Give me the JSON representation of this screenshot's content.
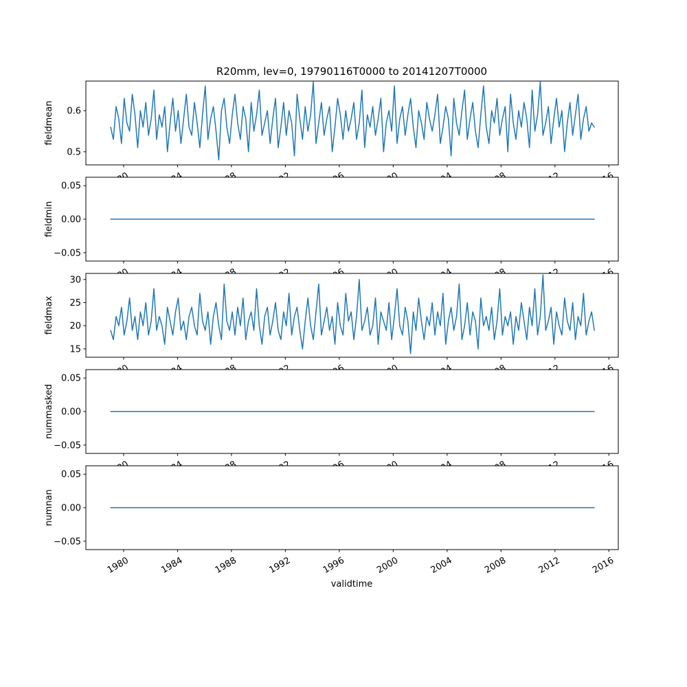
{
  "title": "R20mm, lev=0, 19790116T0000 to 20141207T0000",
  "xlabel": "validtime",
  "line_color": "#1f77b4",
  "chart_data": {
    "type": "line",
    "title": "R20mm, lev=0, 19790116T0000 to 20141207T0000",
    "xlabel": "validtime",
    "x_start": 1979.04,
    "x_end": 2014.92,
    "xlim": [
      1977.2,
      2016.7
    ],
    "xticks": [
      1980,
      1984,
      1988,
      1992,
      1996,
      2000,
      2004,
      2008,
      2012,
      2016
    ],
    "xtick_rotation": 30,
    "grid": false,
    "legend": "none",
    "subplots": [
      {
        "ylabel": "fieldmean",
        "ylim": [
          0.468,
          0.672
        ],
        "yticks": [
          0.5,
          0.6
        ],
        "ytick_labels": [
          "0.5",
          "0.6"
        ],
        "values": [
          0.56,
          0.53,
          0.61,
          0.58,
          0.52,
          0.63,
          0.57,
          0.55,
          0.64,
          0.59,
          0.51,
          0.6,
          0.56,
          0.62,
          0.54,
          0.58,
          0.65,
          0.53,
          0.59,
          0.56,
          0.61,
          0.5,
          0.57,
          0.63,
          0.55,
          0.6,
          0.52,
          0.58,
          0.64,
          0.56,
          0.54,
          0.62,
          0.57,
          0.51,
          0.59,
          0.66,
          0.53,
          0.58,
          0.61,
          0.55,
          0.48,
          0.6,
          0.63,
          0.56,
          0.52,
          0.59,
          0.64,
          0.57,
          0.53,
          0.61,
          0.58,
          0.5,
          0.62,
          0.55,
          0.59,
          0.65,
          0.54,
          0.57,
          0.6,
          0.52,
          0.58,
          0.63,
          0.51,
          0.56,
          0.62,
          0.54,
          0.6,
          0.57,
          0.49,
          0.64,
          0.58,
          0.53,
          0.61,
          0.55,
          0.59,
          0.67,
          0.52,
          0.57,
          0.62,
          0.54,
          0.58,
          0.61,
          0.5,
          0.56,
          0.63,
          0.59,
          0.53,
          0.6,
          0.55,
          0.58,
          0.62,
          0.53,
          0.57,
          0.65,
          0.51,
          0.59,
          0.56,
          0.61,
          0.54,
          0.58,
          0.63,
          0.5,
          0.57,
          0.6,
          0.55,
          0.66,
          0.52,
          0.58,
          0.61,
          0.54,
          0.59,
          0.63,
          0.56,
          0.51,
          0.6,
          0.57,
          0.53,
          0.62,
          0.58,
          0.55,
          0.59,
          0.64,
          0.52,
          0.56,
          0.61,
          0.58,
          0.49,
          0.63,
          0.57,
          0.54,
          0.6,
          0.65,
          0.53,
          0.58,
          0.62,
          0.55,
          0.51,
          0.59,
          0.66,
          0.56,
          0.52,
          0.6,
          0.57,
          0.63,
          0.54,
          0.58,
          0.61,
          0.5,
          0.64,
          0.57,
          0.53,
          0.6,
          0.56,
          0.62,
          0.58,
          0.51,
          0.65,
          0.55,
          0.59,
          0.67,
          0.54,
          0.57,
          0.61,
          0.52,
          0.58,
          0.63,
          0.56,
          0.6,
          0.5,
          0.57,
          0.62,
          0.54,
          0.59,
          0.64,
          0.53,
          0.58,
          0.61,
          0.55,
          0.57,
          0.56
        ]
      },
      {
        "ylabel": "fieldmin",
        "ylim": [
          -0.0625,
          0.0625
        ],
        "yticks": [
          -0.05,
          0.0,
          0.05
        ],
        "ytick_labels": [
          "−0.05",
          "0.00",
          "0.05"
        ],
        "constant": 0.0
      },
      {
        "ylabel": "fieldmax",
        "ylim": [
          13.2,
          31.3
        ],
        "yticks": [
          15,
          20,
          25,
          30
        ],
        "ytick_labels": [
          "15",
          "20",
          "25",
          "30"
        ],
        "values": [
          19,
          17,
          22,
          20,
          24,
          18,
          21,
          26,
          19,
          22,
          17,
          23,
          20,
          25,
          18,
          21,
          28,
          19,
          22,
          20,
          16,
          24,
          21,
          18,
          23,
          26,
          19,
          21,
          17,
          22,
          24,
          20,
          18,
          27,
          21,
          19,
          23,
          16,
          22,
          25,
          20,
          17,
          29,
          21,
          19,
          23,
          18,
          24,
          20,
          26,
          17,
          21,
          23,
          19,
          28,
          20,
          16,
          22,
          24,
          18,
          21,
          25,
          19,
          17,
          23,
          20,
          27,
          18,
          22,
          24,
          19,
          15,
          21,
          26,
          20,
          17,
          23,
          29,
          18,
          21,
          24,
          19,
          22,
          16,
          25,
          20,
          18,
          27,
          21,
          23,
          17,
          22,
          30,
          19,
          21,
          24,
          18,
          20,
          26,
          16,
          23,
          21,
          19,
          25,
          17,
          22,
          28,
          20,
          18,
          24,
          21,
          14,
          23,
          19,
          26,
          21,
          17,
          22,
          20,
          25,
          18,
          23,
          20,
          27,
          16,
          21,
          24,
          19,
          22,
          29,
          17,
          20,
          25,
          18,
          23,
          21,
          15,
          26,
          20,
          22,
          19,
          24,
          17,
          21,
          28,
          18,
          22,
          20,
          23,
          16,
          22,
          19,
          25,
          21,
          17,
          24,
          20,
          28,
          18,
          22,
          31,
          19,
          21,
          24,
          16,
          23,
          20,
          18,
          26,
          21,
          19,
          25,
          17,
          22,
          20,
          27,
          18,
          21,
          23,
          19
        ]
      },
      {
        "ylabel": "nummasked",
        "ylim": [
          -0.0625,
          0.0625
        ],
        "yticks": [
          -0.05,
          0.0,
          0.05
        ],
        "ytick_labels": [
          "−0.05",
          "0.00",
          "0.05"
        ],
        "constant": 0.0
      },
      {
        "ylabel": "numnan",
        "ylim": [
          -0.0625,
          0.0625
        ],
        "yticks": [
          -0.05,
          0.0,
          0.05
        ],
        "ytick_labels": [
          "−0.05",
          "0.00",
          "0.05"
        ],
        "constant": 0.0
      }
    ]
  }
}
